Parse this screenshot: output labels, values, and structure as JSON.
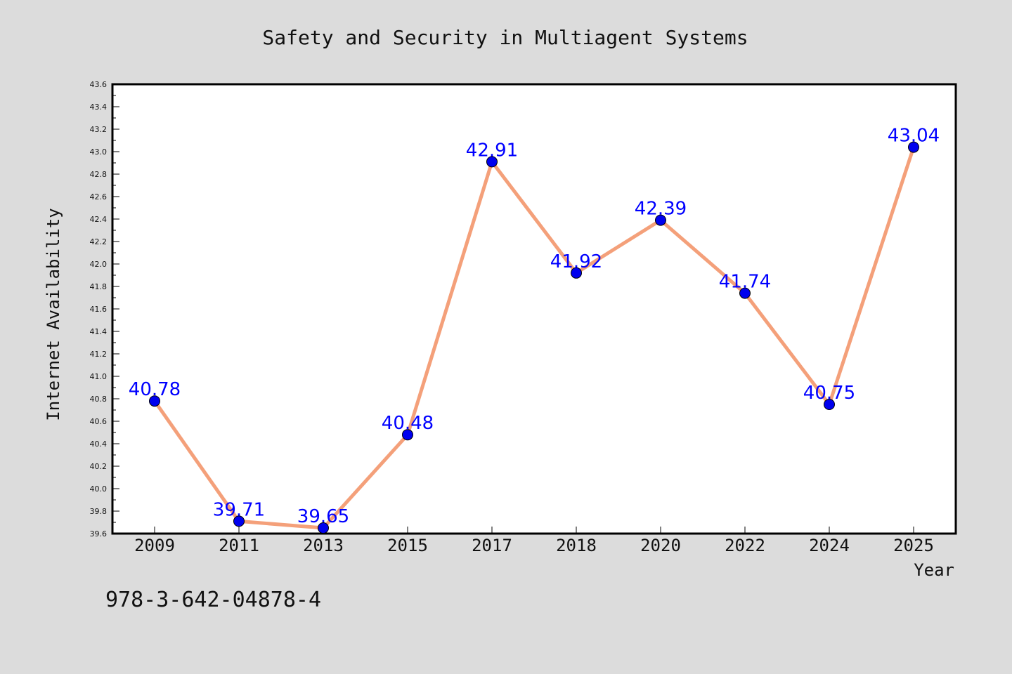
{
  "footer_text": "978-3-642-04878-4",
  "chart_data": {
    "type": "line",
    "title": "Safety and Security in Multiagent Systems",
    "xlabel": "Year",
    "ylabel": "Internet Availability",
    "categories": [
      "2009",
      "2011",
      "2013",
      "2015",
      "2017",
      "2018",
      "2020",
      "2022",
      "2024",
      "2025"
    ],
    "values": [
      40.78,
      39.71,
      39.65,
      40.48,
      42.91,
      41.92,
      42.39,
      41.74,
      40.75,
      43.04
    ],
    "data_labels": [
      "40.78",
      "39.71",
      "39.65",
      "40.48",
      "42.91",
      "41.92",
      "42.39",
      "41.74",
      "40.75",
      "43.04"
    ],
    "ylim": [
      39.6,
      43.6
    ],
    "y_ticks": [
      "39.6",
      "39.8",
      "40.0",
      "40.2",
      "40.4",
      "40.6",
      "40.8",
      "41.0",
      "41.2",
      "41.4",
      "41.6",
      "41.8",
      "42.0",
      "42.2",
      "42.4",
      "42.6",
      "42.8",
      "43.0",
      "43.2",
      "43.4",
      "43.6"
    ],
    "grid": false,
    "colors": {
      "line": "#f4a07a",
      "marker": "#0000ee",
      "label": "#0000ff",
      "plot_bg": "#ffffff",
      "page_bg": "#dcdcdc"
    }
  }
}
